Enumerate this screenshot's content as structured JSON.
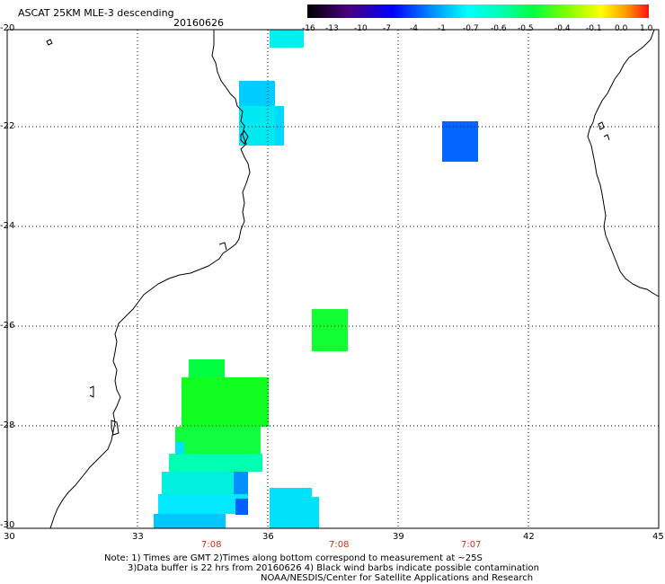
{
  "header": {
    "title": "ASCAT 25KM MLE-3 descending",
    "date": "20160626"
  },
  "colorbar": {
    "labels": [
      "-16",
      "-13",
      "-10",
      "-7",
      "-4",
      "-1",
      "-0.7",
      "-0.6",
      "-0.5",
      "-0.4",
      "-0.1",
      "0.0",
      "1.0"
    ],
    "colors": [
      "#000000",
      "#3a0066",
      "#3000c8",
      "#0000ff",
      "#0070ff",
      "#00d0ff",
      "#00ffd8",
      "#00ff80",
      "#20ff00",
      "#a0ff00",
      "#ffff00",
      "#ffa000",
      "#ff0000"
    ]
  },
  "axes": {
    "lon_labels": [
      "30",
      "33",
      "36",
      "39",
      "42",
      "45"
    ],
    "lat_labels": [
      "-20",
      "-22",
      "-24",
      "-26",
      "-28",
      "-30"
    ],
    "lon_range": [
      30,
      45
    ],
    "lat_range": [
      -20,
      -30
    ],
    "grid": "dotted"
  },
  "times": [
    "7:08",
    "7:08",
    "7:07"
  ],
  "notes": {
    "line1": "Note: 1) Times are GMT 2)Times along bottom correspond to measurement at ~25S",
    "line2": "3)Data buffer is 22 hrs from 20160626 4) Black wind barbs indicate possible contamination",
    "line3": "NOAA/NESDIS/Center for Satellite Applications and Research"
  }
}
